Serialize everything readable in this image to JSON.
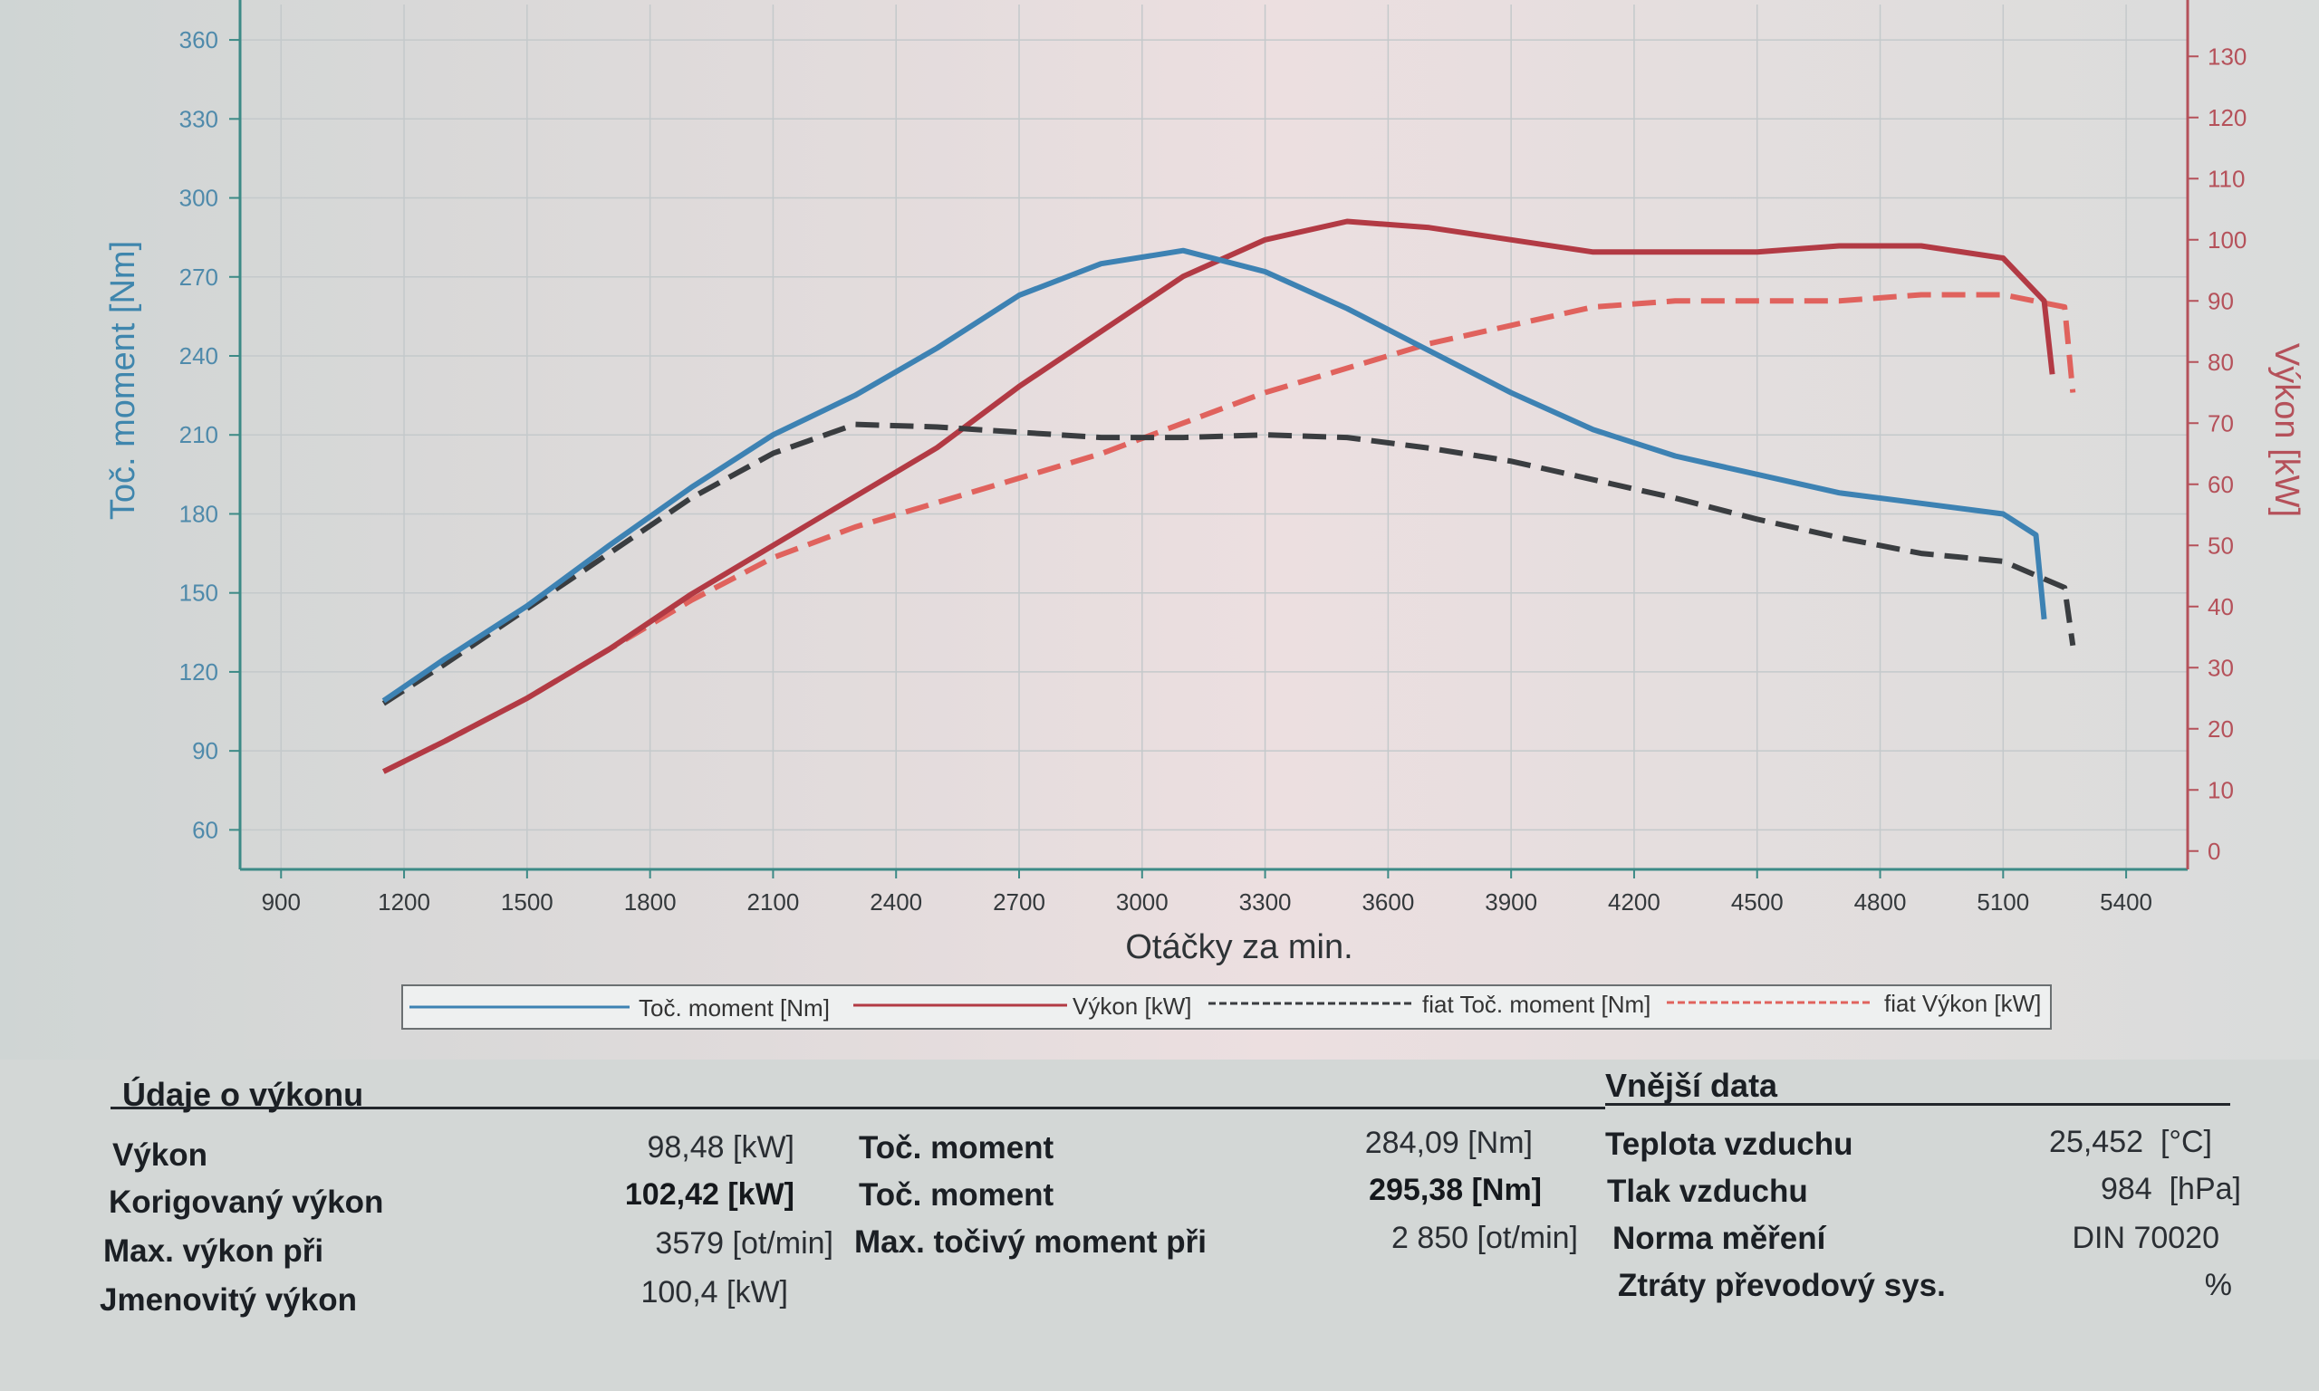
{
  "chart_data": {
    "type": "line",
    "xlabel": "Otáčky za min.",
    "ylabel_left": "Toč. moment [Nm]",
    "ylabel_right": "Výkon [kW]",
    "xlim": [
      800,
      5550
    ],
    "ylim_left": [
      45,
      370
    ],
    "ylim_right": [
      -3,
      137
    ],
    "x_ticks": [
      "900",
      "1200",
      "1500",
      "1800",
      "2100",
      "2400",
      "2700",
      "3000",
      "3300",
      "3600",
      "3900",
      "4200",
      "4500",
      "4800",
      "5100",
      "5400"
    ],
    "y_left_ticks": [
      "60",
      "90",
      "120",
      "150",
      "180",
      "210",
      "240",
      "270",
      "300",
      "330",
      "360"
    ],
    "y_right_ticks": [
      "0",
      "10",
      "20",
      "30",
      "40",
      "50",
      "60",
      "70",
      "80",
      "90",
      "100",
      "110",
      "120",
      "130"
    ],
    "grid": true,
    "legend": "bottom",
    "colors": {
      "torque": "#3d82b3",
      "power": "#b23a44",
      "orig_torque": "#3a3d40",
      "orig_power": "#e0625d"
    },
    "series": [
      {
        "name": "Toč. moment [Nm]",
        "axis": "left",
        "style": "solid",
        "color_key": "torque",
        "x": [
          1150,
          1300,
          1500,
          1700,
          1900,
          2100,
          2300,
          2500,
          2700,
          2900,
          3100,
          3300,
          3500,
          3700,
          3900,
          4100,
          4300,
          4500,
          4700,
          4900,
          5100,
          5180,
          5200
        ],
        "y": [
          109,
          125,
          145,
          168,
          190,
          210,
          225,
          243,
          263,
          275,
          280,
          272,
          258,
          242,
          226,
          212,
          202,
          195,
          188,
          184,
          180,
          172,
          140
        ]
      },
      {
        "name": "Výkon [kW]",
        "axis": "right",
        "style": "solid",
        "color_key": "power",
        "x": [
          1150,
          1300,
          1500,
          1700,
          1900,
          2100,
          2300,
          2500,
          2700,
          2900,
          3100,
          3300,
          3500,
          3700,
          3900,
          4100,
          4300,
          4500,
          4700,
          4900,
          5100,
          5200,
          5220
        ],
        "y": [
          13,
          18,
          25,
          33,
          42,
          50,
          58,
          66,
          76,
          85,
          94,
          100,
          103,
          102,
          100,
          98,
          98,
          98,
          99,
          99,
          97,
          90,
          78
        ]
      },
      {
        "name": "fiat Toč. moment [Nm]",
        "axis": "left",
        "style": "dashed",
        "color_key": "orig_torque",
        "x": [
          1150,
          1300,
          1500,
          1700,
          1900,
          2100,
          2300,
          2500,
          2700,
          2900,
          3100,
          3300,
          3500,
          3700,
          3900,
          4100,
          4300,
          4500,
          4700,
          4900,
          5100,
          5250,
          5270
        ],
        "y": [
          108,
          123,
          144,
          165,
          186,
          203,
          214,
          213,
          211,
          209,
          209,
          210,
          209,
          205,
          200,
          193,
          186,
          178,
          171,
          165,
          162,
          152,
          130
        ]
      },
      {
        "name": "fiat Výkon [kW]",
        "axis": "right",
        "style": "dashed",
        "color_key": "orig_power",
        "x": [
          1150,
          1300,
          1500,
          1700,
          1900,
          2100,
          2300,
          2500,
          2700,
          2900,
          3100,
          3300,
          3500,
          3700,
          3900,
          4100,
          4300,
          4500,
          4700,
          4900,
          5100,
          5250,
          5270
        ],
        "y": [
          13,
          18,
          25,
          33,
          41,
          48,
          53,
          57,
          61,
          65,
          70,
          75,
          79,
          83,
          86,
          89,
          90,
          90,
          90,
          91,
          91,
          89,
          75
        ]
      }
    ]
  },
  "perf": {
    "title": "Údaje o výkonu",
    "rows": [
      {
        "label": "Výkon",
        "value": "98,48",
        "unit": "[kW]",
        "bold": false
      },
      {
        "label": "Korigovaný výkon",
        "value": "102,42",
        "unit": "[kW]",
        "bold": true
      },
      {
        "label": "Max. výkon při",
        "value": "3579",
        "unit": "[ot/min]",
        "bold": false
      },
      {
        "label": "Jmenovitý výkon",
        "value": "100,4",
        "unit": "[kW]",
        "bold": false
      }
    ],
    "mid_rows": [
      {
        "label": "Toč. moment",
        "value": "284,09",
        "unit": "[Nm]",
        "bold": false
      },
      {
        "label": "Toč. moment",
        "value": "295,38",
        "unit": "[Nm]",
        "bold": true
      },
      {
        "label": "Max. točivý moment při",
        "value": "2 850",
        "unit": "[ot/min]",
        "bold": false
      }
    ]
  },
  "ext": {
    "title": "Vnější data",
    "rows": [
      {
        "label": "Teplota vzduchu",
        "value": "25,452",
        "unit": "[°C]"
      },
      {
        "label": "Tlak vzduchu",
        "value": "984",
        "unit": "[hPa]"
      },
      {
        "label": "Norma měření",
        "value": "DIN 70020",
        "unit": ""
      },
      {
        "label": "Ztráty převodový sys.",
        "value": "",
        "unit": "%"
      }
    ]
  }
}
